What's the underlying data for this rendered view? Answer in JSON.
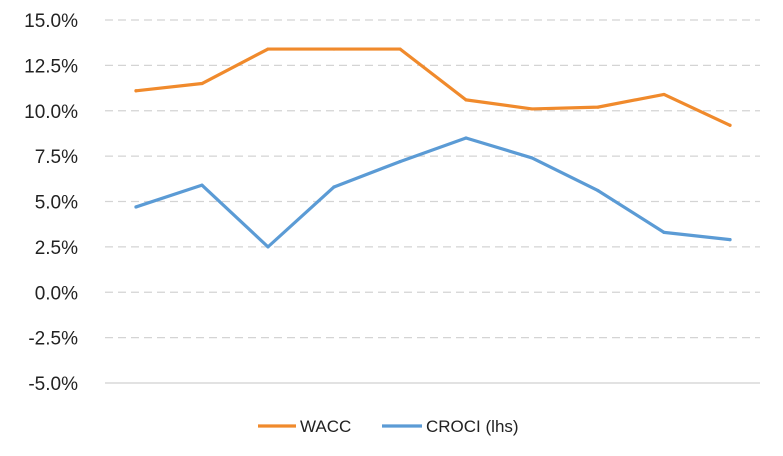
{
  "chart_data": {
    "type": "line",
    "x": [
      1,
      2,
      3,
      4,
      5,
      6,
      7,
      8,
      9,
      10
    ],
    "ylim": [
      -5.0,
      15.0
    ],
    "yticks": [
      "15.0%",
      "12.5%",
      "10.0%",
      "7.5%",
      "5.0%",
      "2.5%",
      "0.0%",
      "-2.5%",
      "-5.0%"
    ],
    "ytick_values": [
      15.0,
      12.5,
      10.0,
      7.5,
      5.0,
      2.5,
      0.0,
      -2.5,
      -5.0
    ],
    "grid": "horizontal-dashed",
    "legend_position": "bottom-center",
    "series": [
      {
        "name": "WACC",
        "color": "#f08a2c",
        "values": [
          11.1,
          11.5,
          13.4,
          13.4,
          13.4,
          10.6,
          10.1,
          10.2,
          10.9,
          9.2
        ]
      },
      {
        "name": "CROCI (lhs)",
        "color": "#5b9bd5",
        "values": [
          4.7,
          5.9,
          2.5,
          5.8,
          7.2,
          8.5,
          7.4,
          5.6,
          3.3,
          2.9
        ]
      }
    ]
  }
}
